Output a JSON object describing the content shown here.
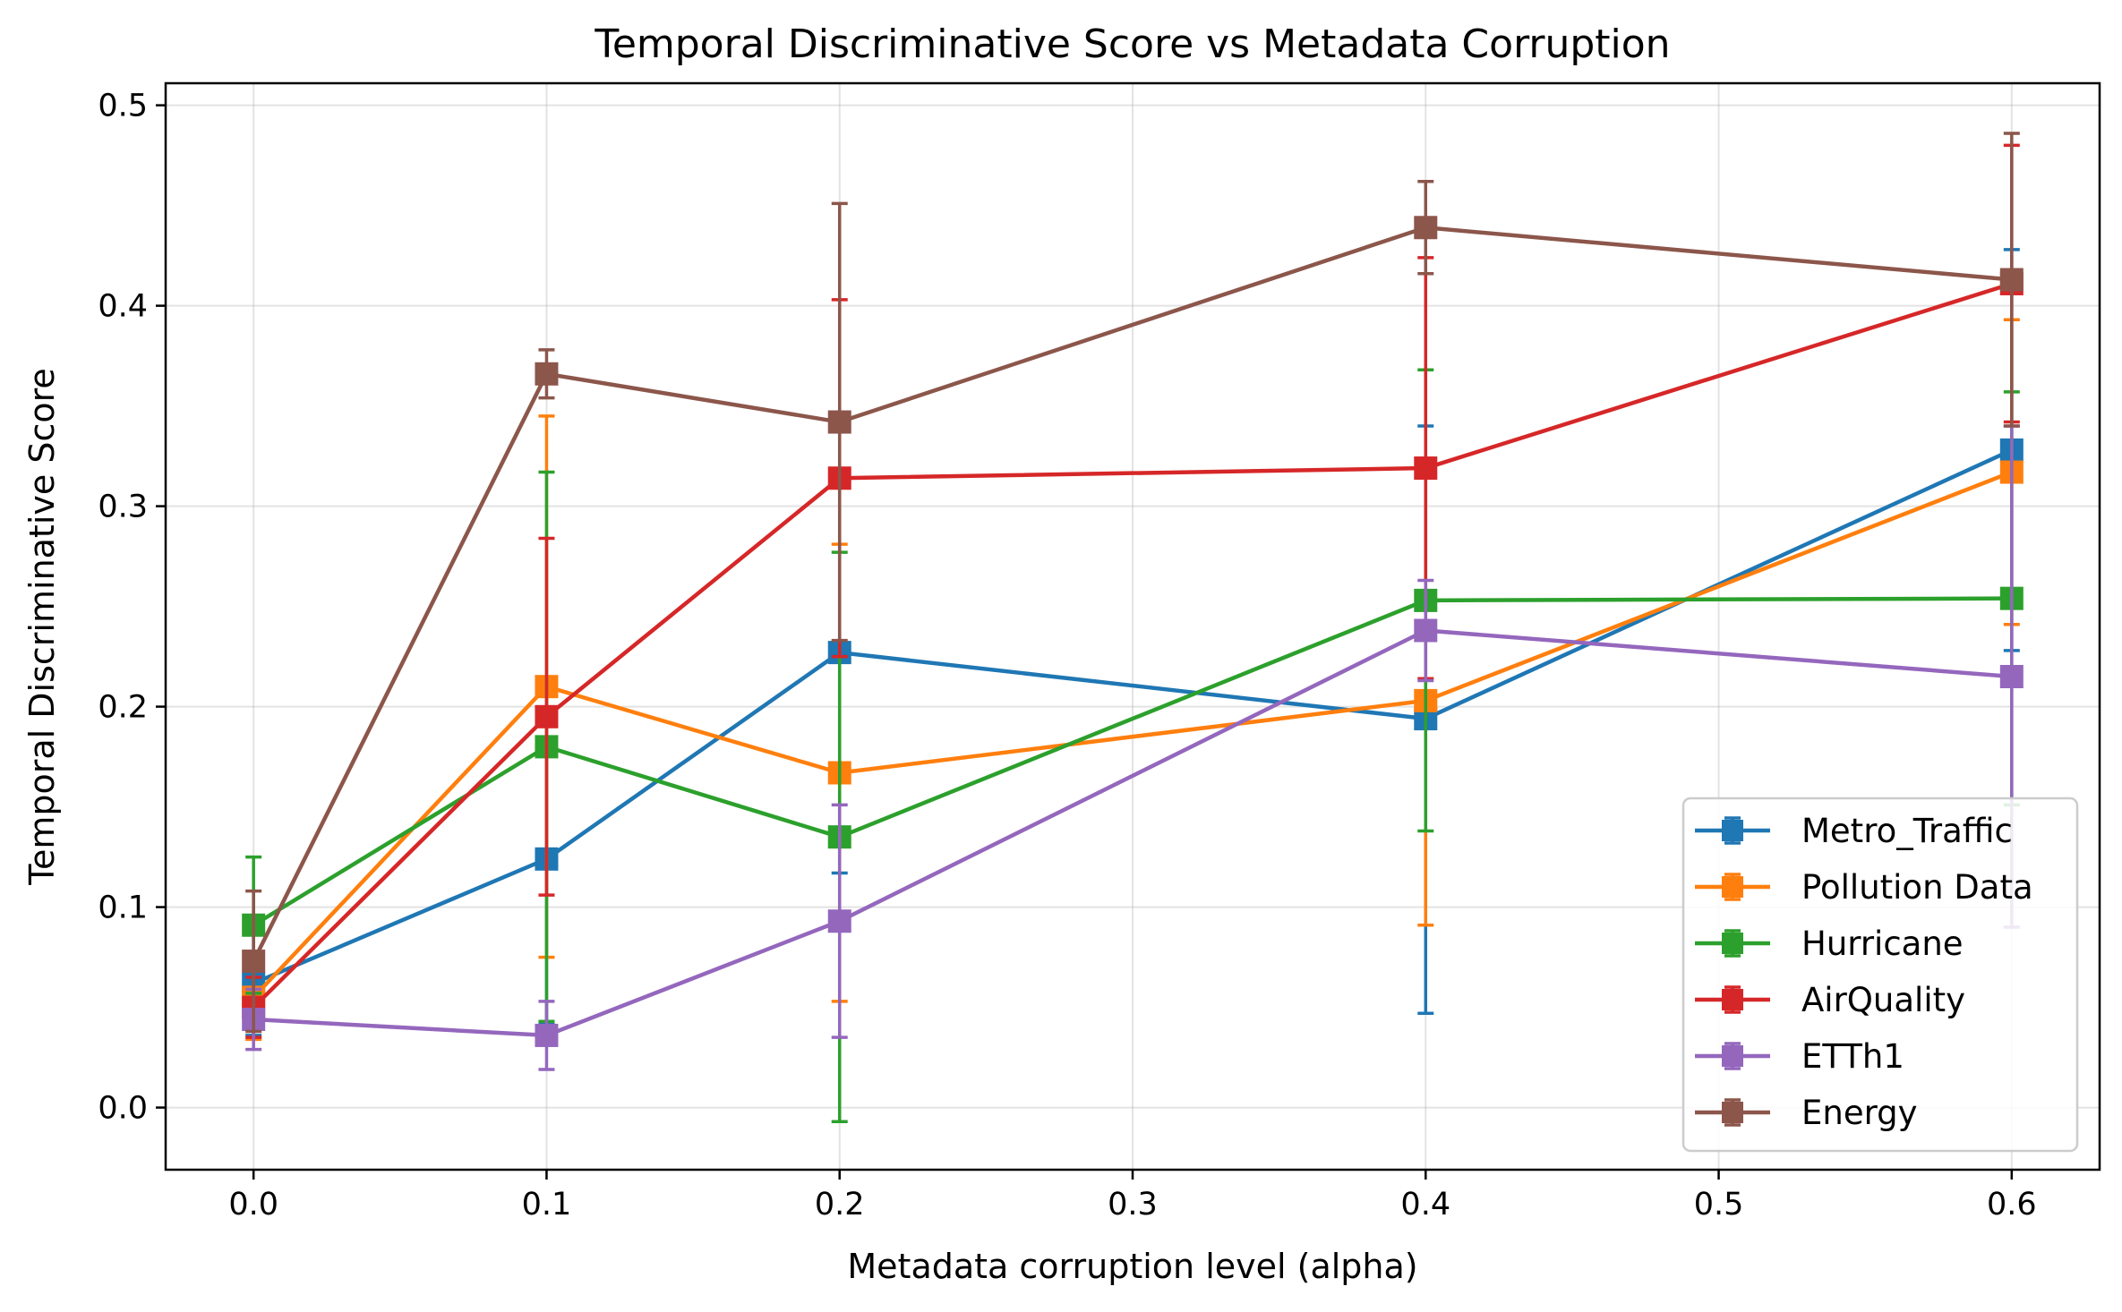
{
  "chart_data": {
    "type": "line",
    "title": "Temporal Discriminative Score vs Metadata Corruption",
    "xlabel": "Metadata corruption level (alpha)",
    "ylabel": "Temporal Discriminative Score",
    "xlim": [
      -0.03,
      0.63
    ],
    "ylim": [
      -0.031,
      0.511
    ],
    "xticks": [
      0.0,
      0.1,
      0.2,
      0.3,
      0.4,
      0.5,
      0.6
    ],
    "xtick_labels": [
      "0.0",
      "0.1",
      "0.2",
      "0.3",
      "0.4",
      "0.5",
      "0.6"
    ],
    "yticks": [
      0.0,
      0.1,
      0.2,
      0.3,
      0.4,
      0.5
    ],
    "ytick_labels": [
      "0.0",
      "0.1",
      "0.2",
      "0.3",
      "0.4",
      "0.5"
    ],
    "grid": true,
    "legend_position": "bottom-right",
    "marker": "square",
    "x": [
      0.0,
      0.1,
      0.2,
      0.4,
      0.6
    ],
    "series": [
      {
        "name": "Metro_Traffic",
        "color": "#1f77b4",
        "values": [
          0.062,
          0.124,
          0.227,
          0.194,
          0.328
        ],
        "lower": [
          0.036,
          0.042,
          0.117,
          0.047,
          0.228
        ],
        "upper": [
          0.088,
          0.206,
          0.337,
          0.34,
          0.428
        ]
      },
      {
        "name": "Pollution Data",
        "color": "#ff7f0e",
        "values": [
          0.055,
          0.21,
          0.167,
          0.203,
          0.317
        ],
        "lower": [
          0.034,
          0.075,
          0.053,
          0.091,
          0.241
        ],
        "upper": [
          0.076,
          0.345,
          0.281,
          0.315,
          0.393
        ]
      },
      {
        "name": "Hurricane",
        "color": "#2ca02c",
        "values": [
          0.091,
          0.18,
          0.135,
          0.253,
          0.254
        ],
        "lower": [
          0.057,
          0.043,
          -0.007,
          0.138,
          0.151
        ],
        "upper": [
          0.125,
          0.317,
          0.277,
          0.368,
          0.357
        ]
      },
      {
        "name": "AirQuality",
        "color": "#d62728",
        "values": [
          0.05,
          0.195,
          0.314,
          0.319,
          0.411
        ],
        "lower": [
          0.035,
          0.106,
          0.225,
          0.214,
          0.342
        ],
        "upper": [
          0.065,
          0.284,
          0.403,
          0.424,
          0.48
        ]
      },
      {
        "name": "ETTh1",
        "color": "#9467bd",
        "values": [
          0.044,
          0.036,
          0.093,
          0.238,
          0.215
        ],
        "lower": [
          0.029,
          0.019,
          0.035,
          0.213,
          0.09
        ],
        "upper": [
          0.059,
          0.053,
          0.151,
          0.263,
          0.34
        ]
      },
      {
        "name": "Energy",
        "color": "#8c564b",
        "values": [
          0.073,
          0.366,
          0.342,
          0.439,
          0.413
        ],
        "lower": [
          0.038,
          0.354,
          0.233,
          0.416,
          0.34
        ],
        "upper": [
          0.108,
          0.378,
          0.451,
          0.462,
          0.486
        ]
      }
    ]
  }
}
